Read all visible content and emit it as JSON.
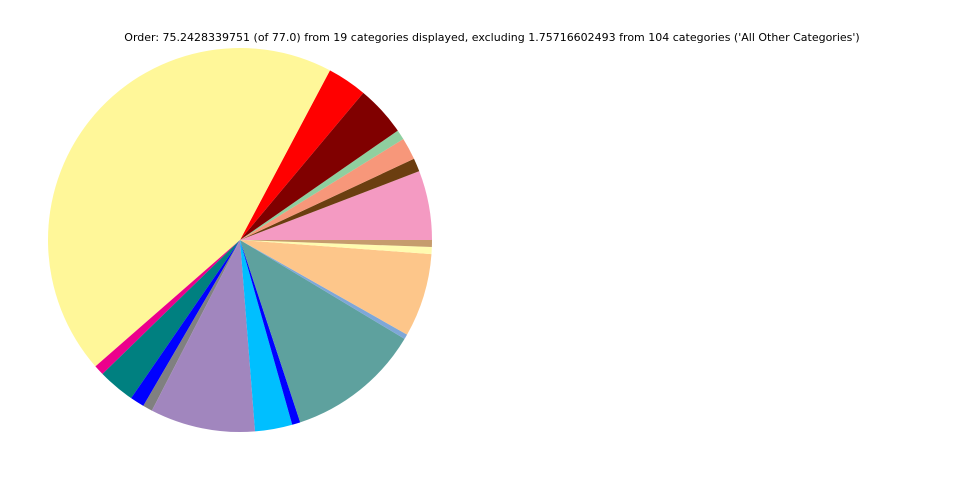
{
  "chart_data": {
    "type": "pie",
    "title": "Order: 75.2428339751 (of 77.0) from 19 categories displayed, excluding 1.75716602493 from 104 categories ('All Other Categories')",
    "values": [
      4.39,
      0.84,
      1.4,
      0.63,
      3.2,
      2.51,
      33.25,
      0.65,
      2.34,
      0.9,
      0.61,
      6.65,
      2.36,
      0.52,
      8.51,
      0.31,
      5.29,
      0.44,
      0.44
    ],
    "colors": [
      "#f49ac2",
      "#6b3e10",
      "#f7977a",
      "#8fcf9f",
      "#800000",
      "#ff0000",
      "#fff799",
      "#ec008c",
      "#008080",
      "#0000ff",
      "#808080",
      "#a186be",
      "#00bfff",
      "#0000ff",
      "#5ea19e",
      "#7ea7d8",
      "#fdc68a",
      "#fffbb0",
      "#c69c6d"
    ],
    "start_angle": 0
  }
}
